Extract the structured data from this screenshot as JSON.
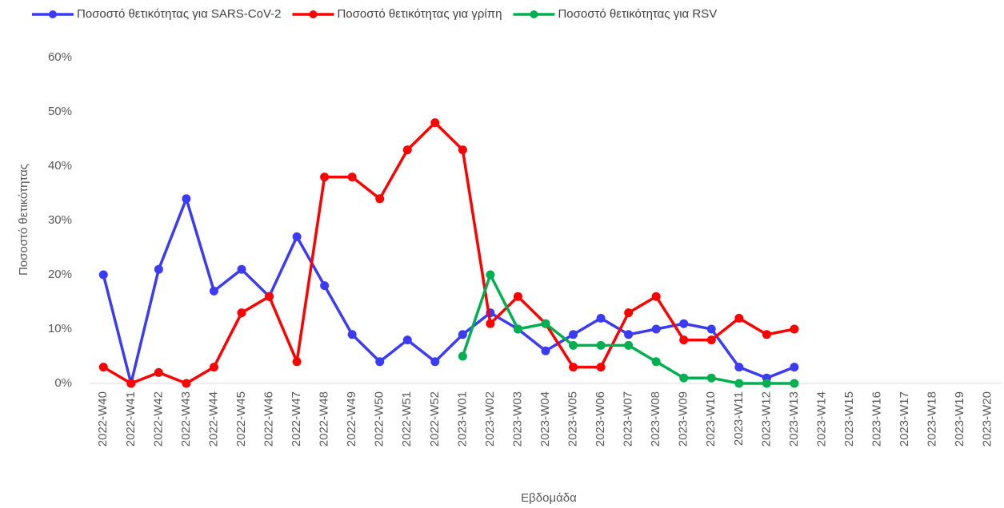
{
  "chart_data": {
    "type": "line",
    "x_label": "Εβδομάδα",
    "y_label": "Ποσοστό θετικότητας",
    "categories": [
      "2022-W40",
      "2022-W41",
      "2022-W42",
      "2022-W43",
      "2022-W44",
      "2022-W45",
      "2022-W46",
      "2022-W47",
      "2022-W48",
      "2022-W49",
      "2022-W50",
      "2022-W51",
      "2022-W52",
      "2023-W01",
      "2023-W02",
      "2023-W03",
      "2023-W04",
      "2023-W05",
      "2023-W06",
      "2023-W07",
      "2023-W08",
      "2023-W09",
      "2023-W10",
      "2023-W11",
      "2023-W12",
      "2023-W13",
      "2023-W14",
      "2023-W15",
      "2023-W16",
      "2023-W17",
      "2023-W18",
      "2023-W19",
      "2023-W20"
    ],
    "series": [
      {
        "name": "Ποσοστό θετικότητας για SARS-CoV-2",
        "color": "#3b3bf5",
        "values": [
          20,
          0,
          21,
          34,
          17,
          21,
          16,
          27,
          18,
          9,
          4,
          8,
          4,
          9,
          13,
          10,
          6,
          9,
          12,
          9,
          10,
          11,
          10,
          3,
          1,
          3,
          null,
          null,
          null,
          null,
          null,
          null,
          null
        ]
      },
      {
        "name": "Ποσοστό θετικότητας για γρίπη",
        "color": "#ff0000",
        "values": [
          3,
          0,
          2,
          0,
          3,
          13,
          16,
          4,
          38,
          38,
          34,
          43,
          48,
          43,
          11,
          16,
          11,
          3,
          3,
          13,
          16,
          8,
          8,
          12,
          9,
          10,
          null,
          null,
          null,
          null,
          null,
          null,
          null
        ]
      },
      {
        "name": "Ποσοστό θετικότητας για RSV",
        "color": "#00b050",
        "values": [
          null,
          null,
          null,
          null,
          null,
          null,
          null,
          null,
          null,
          null,
          null,
          null,
          null,
          5,
          20,
          10,
          11,
          7,
          7,
          7,
          4,
          1,
          1,
          0,
          0,
          0,
          null,
          null,
          null,
          null,
          null,
          null,
          null
        ]
      }
    ],
    "ylim": [
      0,
      60
    ],
    "yticks": [
      {
        "value": 0,
        "label": "0%"
      },
      {
        "value": 10,
        "label": "10%"
      },
      {
        "value": 20,
        "label": "20%"
      },
      {
        "value": 30,
        "label": "30%"
      },
      {
        "value": 40,
        "label": "40%"
      },
      {
        "value": 50,
        "label": "50%"
      },
      {
        "value": 60,
        "label": "60%"
      }
    ],
    "legend": "top"
  }
}
